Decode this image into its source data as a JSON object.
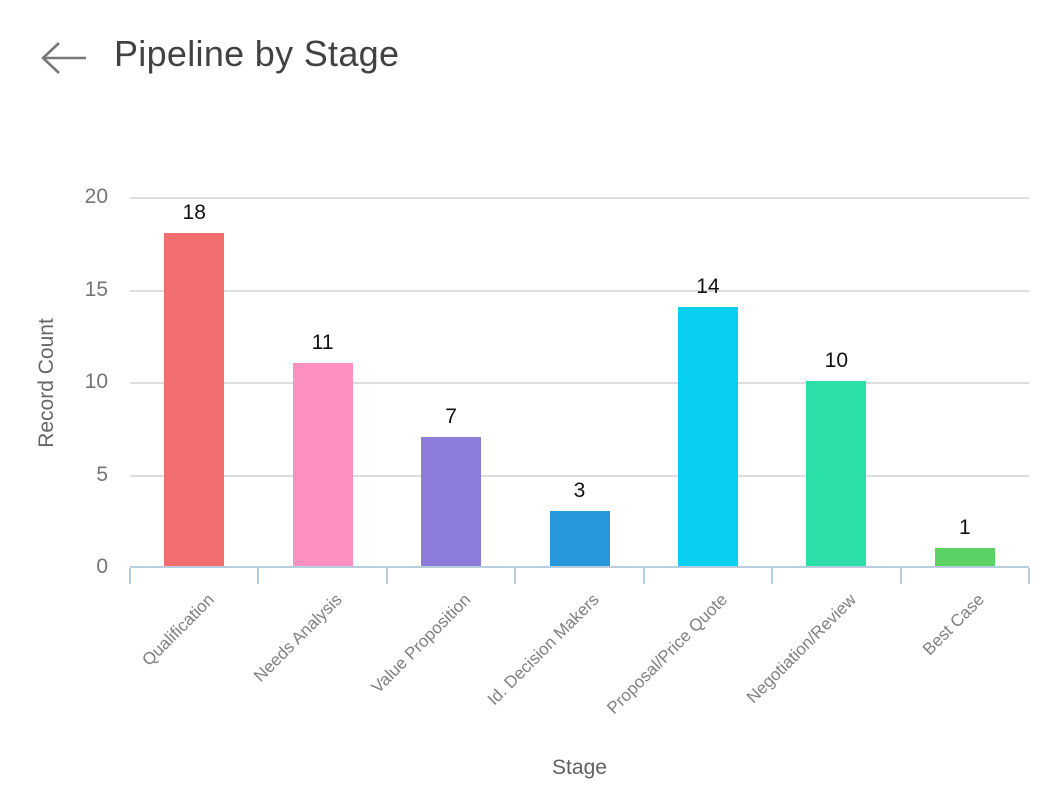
{
  "header": {
    "title": "Pipeline by Stage"
  },
  "chart_data": {
    "type": "bar",
    "title": "Pipeline by Stage",
    "categories": [
      "Qualification",
      "Needs Analysis",
      "Value Proposition",
      "Id. Decision Makers",
      "Proposal/Price Quote",
      "Negotiation/Review",
      "Best Case"
    ],
    "values": [
      18,
      11,
      7,
      3,
      14,
      10,
      1
    ],
    "bar_colors": [
      "#F26D6D",
      "#FC90C2",
      "#8D7CDC",
      "#2997DC",
      "#06CFF2",
      "#2BDFA9",
      "#5CD166"
    ],
    "xlabel": "Stage",
    "ylabel": "Record Count",
    "ylim": [
      0,
      20
    ],
    "yticks": [
      0,
      5,
      10,
      15,
      20
    ],
    "grid": true,
    "legend": false
  },
  "colors": {
    "grid_line": "#DDDDDD",
    "axis_line": "#B8CEDE",
    "title_text": "#424242",
    "tick_text": "#757575",
    "axis_title_text": "#666666",
    "category_text": "#808080",
    "value_label_text": "#111111",
    "back_arrow": "#787878"
  }
}
